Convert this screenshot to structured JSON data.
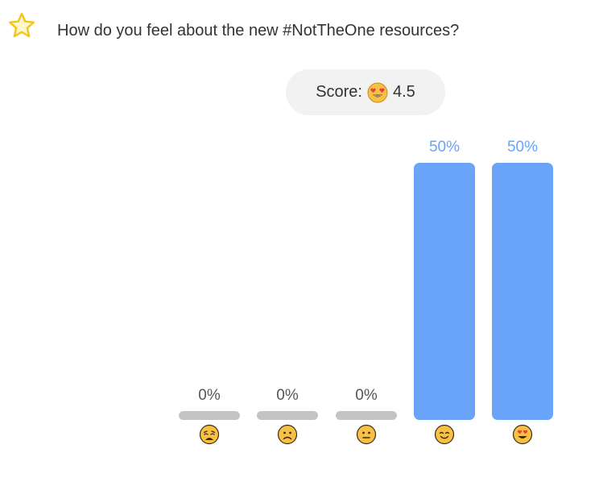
{
  "question": {
    "text": "How do you feel about the new #NotTheOne resources?",
    "icon": "star-icon",
    "icon_color": "#f5c518"
  },
  "score": {
    "label": "Score:",
    "icon": "heart-eyes-face-icon",
    "value": "4.5"
  },
  "colors": {
    "bar_filled": "#6aa4f8",
    "bar_zero": "#c4c4c4",
    "emoji_face": "#f7c244"
  },
  "chart_data": {
    "type": "bar",
    "categories": [
      "weary-face",
      "frowning-face",
      "neutral-face",
      "smiling-face",
      "heart-eyes-face"
    ],
    "values": [
      0,
      0,
      0,
      50,
      50
    ],
    "labels": [
      "0%",
      "0%",
      "0%",
      "50%",
      "50%"
    ],
    "ylim": [
      0,
      50
    ],
    "grid": false,
    "legend": "none"
  }
}
